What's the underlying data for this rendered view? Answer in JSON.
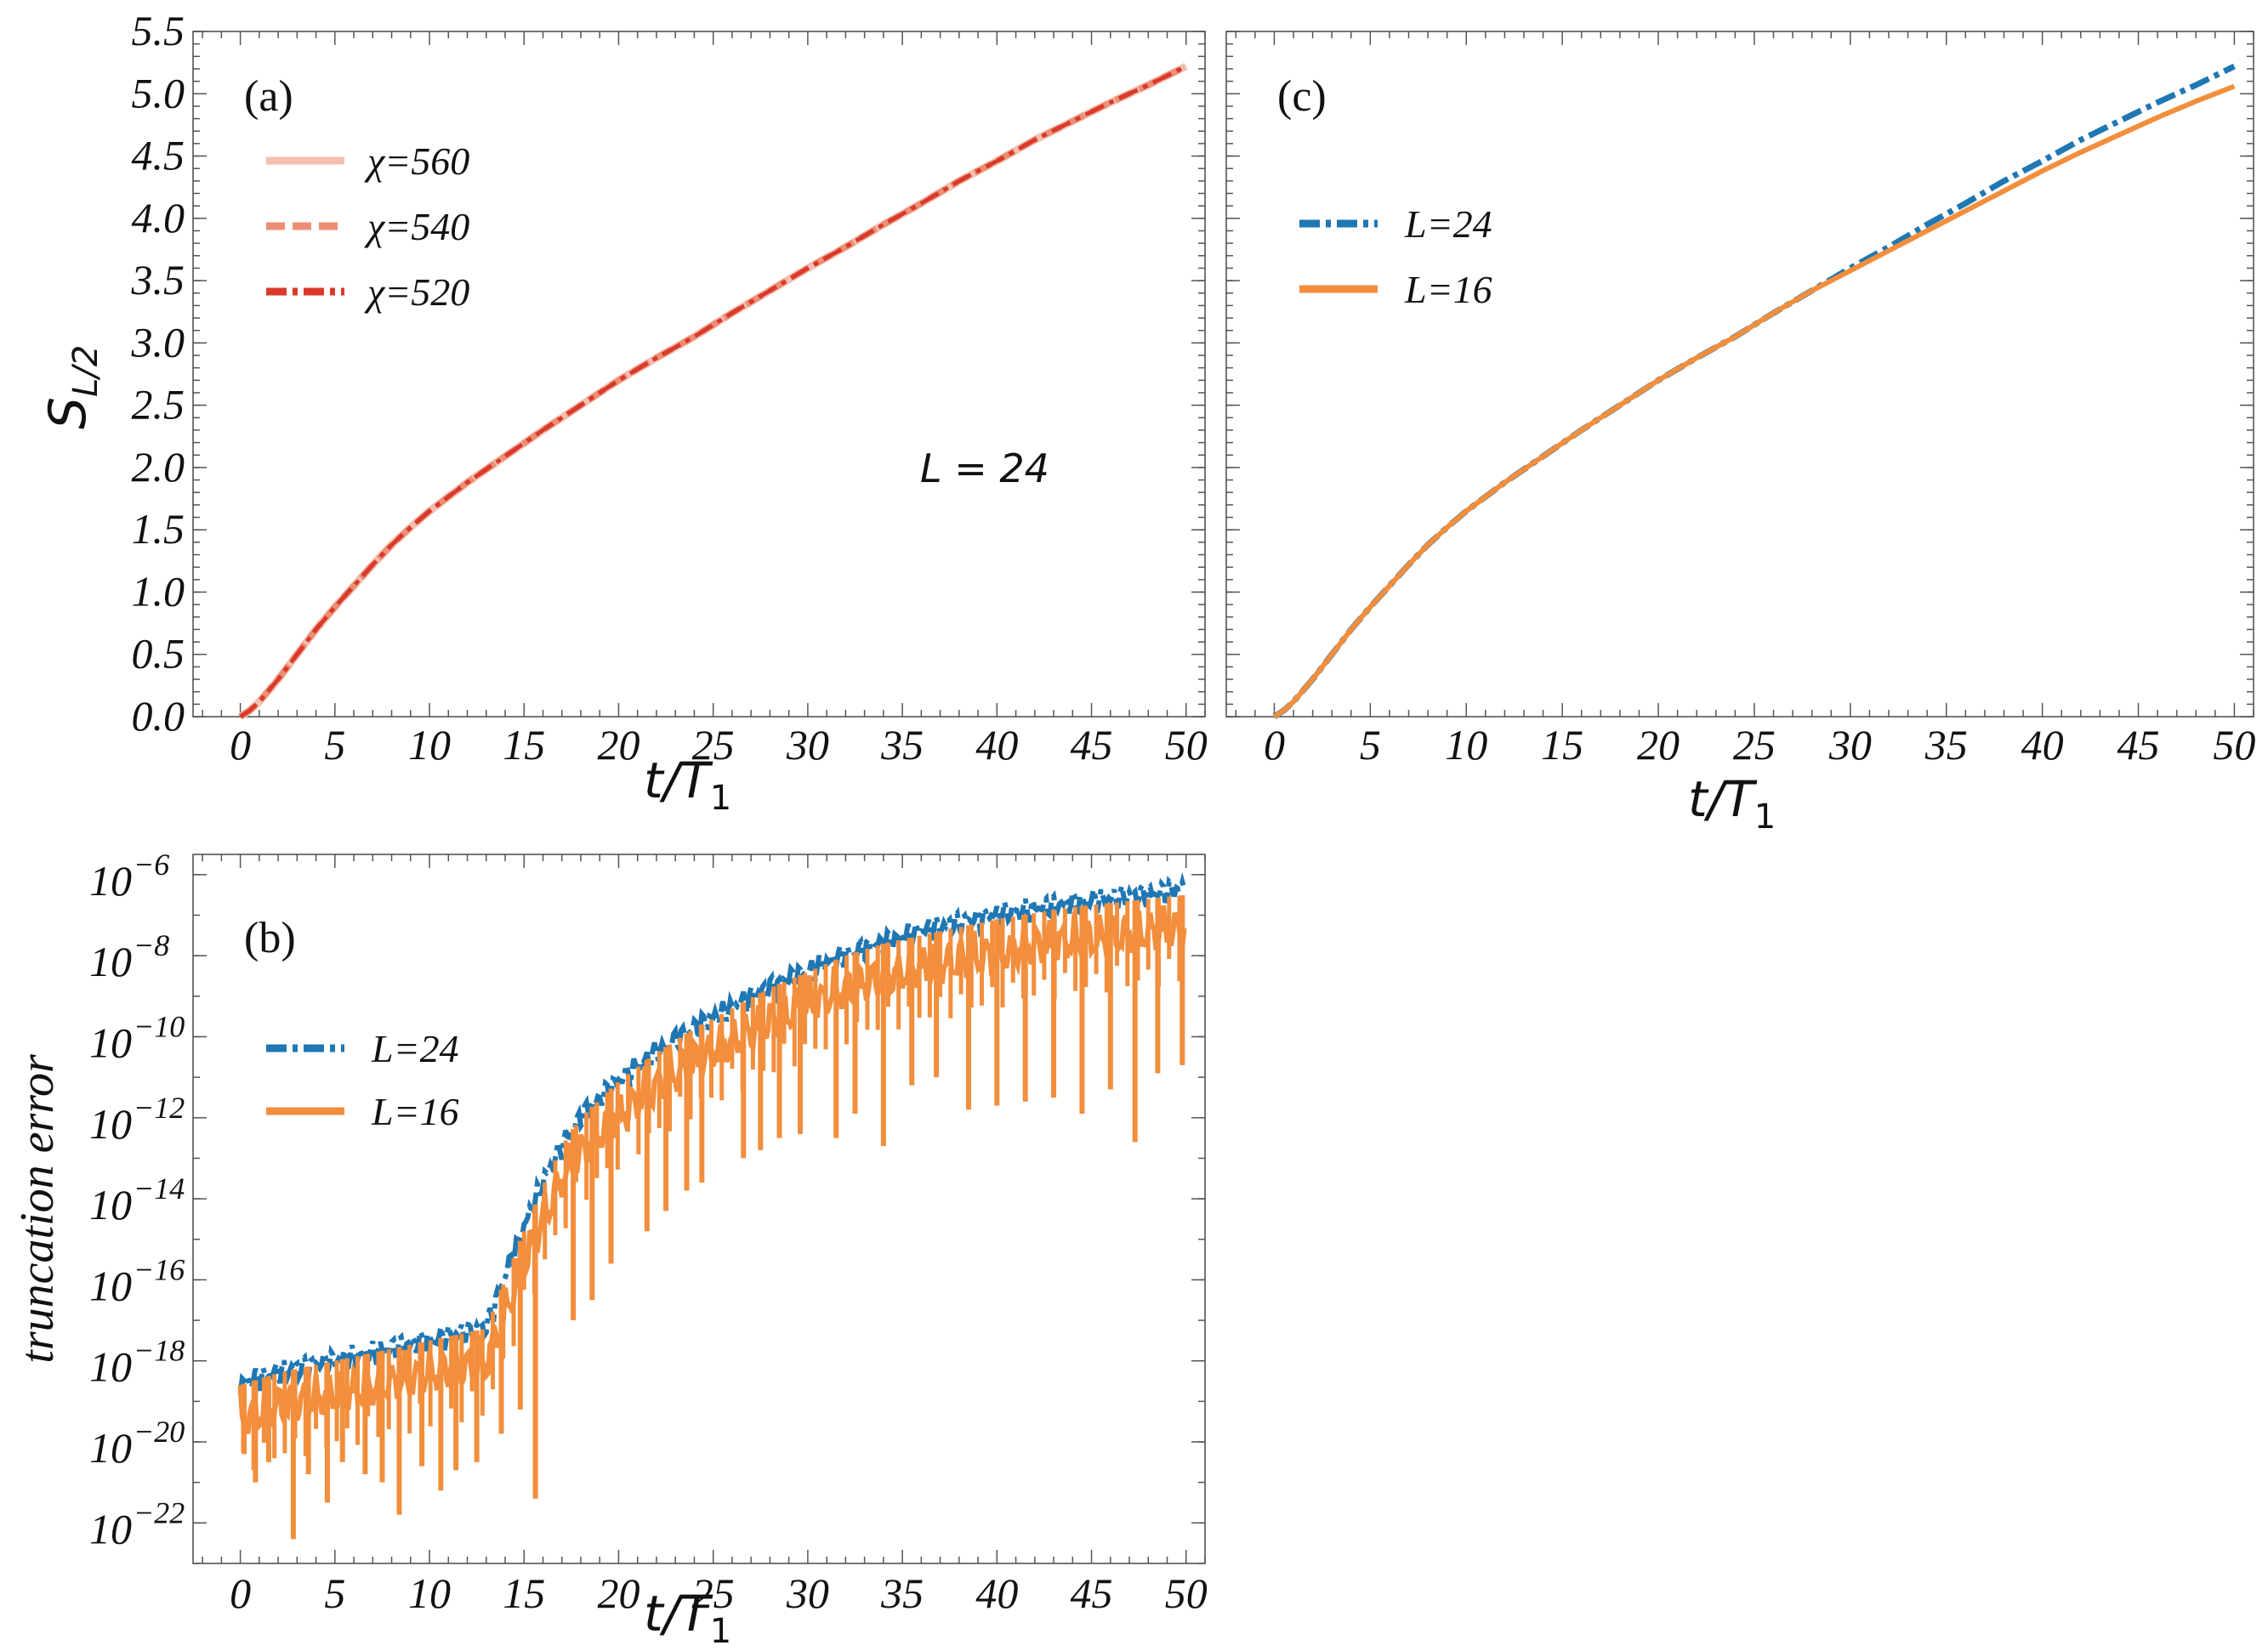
{
  "chart_data": [
    {
      "panel": "(a)",
      "type": "line",
      "xlabel": "t/T",
      "xlabel_sub": "1",
      "ylabel": "S",
      "ylabel_sub": "L/2",
      "xlim": [
        -2.5,
        51
      ],
      "ylim": [
        0,
        5.5
      ],
      "xticks": [
        0,
        5,
        10,
        15,
        20,
        25,
        30,
        35,
        40,
        45,
        50
      ],
      "xtick_labels": [
        "0",
        "5",
        "10",
        "15",
        "20",
        "25",
        "30",
        "35",
        "40",
        "45",
        "50"
      ],
      "yticks": [
        0,
        0.5,
        1,
        1.5,
        2,
        2.5,
        3,
        3.5,
        4,
        4.5,
        5,
        5.5
      ],
      "ytick_labels": [
        "0.0",
        "0.5",
        "1.0",
        "1.5",
        "2.0",
        "2.5",
        "3.0",
        "3.5",
        "4.0",
        "4.5",
        "5.0",
        "5.5"
      ],
      "annotation": "L = 24",
      "x": [
        0,
        0.5,
        1,
        2,
        3,
        4,
        5,
        6,
        7,
        8,
        9,
        10,
        12,
        14,
        16,
        18,
        20,
        22,
        24,
        26,
        28,
        30,
        32,
        34,
        36,
        38,
        40,
        42,
        44,
        46,
        48,
        50
      ],
      "series": [
        {
          "name": "χ=560",
          "color": "#f4bfb1",
          "style": "solid",
          "values": [
            0.0,
            0.05,
            0.12,
            0.3,
            0.5,
            0.7,
            0.88,
            1.05,
            1.22,
            1.38,
            1.52,
            1.65,
            1.88,
            2.09,
            2.3,
            2.5,
            2.7,
            2.88,
            3.05,
            3.24,
            3.42,
            3.6,
            3.77,
            3.95,
            4.12,
            4.3,
            4.46,
            4.63,
            4.78,
            4.93,
            5.07,
            5.22
          ]
        },
        {
          "name": "χ=540",
          "color": "#ec8e74",
          "style": "dashed",
          "values": [
            0.0,
            0.05,
            0.12,
            0.3,
            0.5,
            0.7,
            0.88,
            1.05,
            1.22,
            1.38,
            1.52,
            1.65,
            1.88,
            2.09,
            2.3,
            2.5,
            2.7,
            2.88,
            3.05,
            3.24,
            3.42,
            3.6,
            3.77,
            3.95,
            4.12,
            4.3,
            4.46,
            4.63,
            4.78,
            4.93,
            5.07,
            5.22
          ]
        },
        {
          "name": "χ=520",
          "color": "#d93a2b",
          "style": "dashdot",
          "values": [
            0.0,
            0.05,
            0.12,
            0.3,
            0.5,
            0.7,
            0.88,
            1.05,
            1.22,
            1.38,
            1.52,
            1.65,
            1.88,
            2.09,
            2.3,
            2.5,
            2.7,
            2.88,
            3.05,
            3.24,
            3.42,
            3.6,
            3.77,
            3.95,
            4.12,
            4.3,
            4.46,
            4.63,
            4.78,
            4.93,
            5.07,
            5.22
          ]
        }
      ]
    },
    {
      "panel": "(c)",
      "type": "line",
      "xlabel": "t/T",
      "xlabel_sub": "1",
      "xlim": [
        -2.5,
        51
      ],
      "ylim": [
        0,
        5.5
      ],
      "xticks": [
        0,
        5,
        10,
        15,
        20,
        25,
        30,
        35,
        40,
        45,
        50
      ],
      "xtick_labels": [
        "0",
        "5",
        "10",
        "15",
        "20",
        "25",
        "30",
        "35",
        "40",
        "45",
        "50"
      ],
      "yticks": [
        0,
        0.5,
        1,
        1.5,
        2,
        2.5,
        3,
        3.5,
        4,
        4.5,
        5,
        5.5
      ],
      "x": [
        0,
        0.5,
        1,
        2,
        3,
        4,
        5,
        6,
        7,
        8,
        9,
        10,
        12,
        14,
        16,
        18,
        20,
        22,
        24,
        26,
        28,
        30,
        32,
        34,
        36,
        38,
        40,
        42,
        44,
        46,
        48,
        50
      ],
      "series": [
        {
          "name": "L=24",
          "color": "#1f77b4",
          "style": "dashdot",
          "values": [
            0.0,
            0.05,
            0.12,
            0.3,
            0.5,
            0.7,
            0.88,
            1.05,
            1.22,
            1.38,
            1.52,
            1.65,
            1.88,
            2.09,
            2.3,
            2.5,
            2.7,
            2.88,
            3.05,
            3.24,
            3.42,
            3.6,
            3.77,
            3.95,
            4.12,
            4.3,
            4.46,
            4.63,
            4.78,
            4.93,
            5.07,
            5.22
          ]
        },
        {
          "name": "L=16",
          "color": "#f28e3c",
          "style": "solid",
          "values": [
            0.0,
            0.05,
            0.12,
            0.3,
            0.5,
            0.7,
            0.88,
            1.05,
            1.22,
            1.38,
            1.52,
            1.65,
            1.88,
            2.09,
            2.3,
            2.5,
            2.7,
            2.88,
            3.05,
            3.24,
            3.42,
            3.58,
            3.74,
            3.9,
            4.06,
            4.22,
            4.38,
            4.53,
            4.67,
            4.81,
            4.94,
            5.06
          ]
        }
      ]
    },
    {
      "panel": "(b)",
      "type": "line",
      "xlabel": "t/T",
      "xlabel_sub": "1",
      "ylabel": "truncation error",
      "yscale": "log",
      "xlim": [
        -2.5,
        51
      ],
      "ylim_log10": [
        -23,
        -5.5
      ],
      "xticks": [
        0,
        5,
        10,
        15,
        20,
        25,
        30,
        35,
        40,
        45,
        50
      ],
      "xtick_labels": [
        "0",
        "5",
        "10",
        "15",
        "20",
        "25",
        "30",
        "35",
        "40",
        "45",
        "50"
      ],
      "yticks_log10": [
        -22,
        -20,
        -18,
        -16,
        -14,
        -12,
        -10,
        -8,
        -6
      ],
      "ytick_base": "10",
      "ytick_exponents": [
        "−22",
        "−20",
        "−18",
        "−16",
        "−14",
        "−12",
        "−10",
        "−8",
        "−6"
      ],
      "series": [
        {
          "name": "L=24",
          "color": "#1f77b4",
          "style": "dashdot",
          "envelope_x": [
            0,
            2,
            4,
            6,
            8,
            10,
            12,
            13,
            14,
            15,
            16,
            17,
            18,
            20,
            22,
            24,
            26,
            28,
            30,
            32,
            34,
            36,
            38,
            40,
            42,
            44,
            46,
            48,
            50
          ],
          "envelope_log10": [
            -18.2,
            -17.9,
            -17.7,
            -17.5,
            -17.3,
            -17.1,
            -16.9,
            -16.8,
            -15.5,
            -14.3,
            -13.2,
            -12.3,
            -11.6,
            -10.7,
            -10.0,
            -9.4,
            -8.9,
            -8.4,
            -8.0,
            -7.6,
            -7.3,
            -7.0,
            -6.8,
            -6.6,
            -6.45,
            -6.3,
            -6.2,
            -6.1,
            -5.95
          ]
        },
        {
          "name": "L=16",
          "color": "#f28e3c",
          "style": "solid",
          "envelope_x": [
            0,
            2,
            4,
            6,
            8,
            10,
            12,
            13,
            14,
            15,
            16,
            17,
            18,
            20,
            22,
            24,
            26,
            28,
            30,
            32,
            34,
            36,
            38,
            40,
            42,
            44,
            46,
            48,
            50
          ],
          "envelope_log10": [
            -18.6,
            -18.3,
            -18.1,
            -17.9,
            -17.7,
            -17.5,
            -17.3,
            -17.2,
            -16.0,
            -14.8,
            -13.7,
            -12.7,
            -12.0,
            -11.1,
            -10.4,
            -9.8,
            -9.3,
            -8.8,
            -8.4,
            -8.0,
            -7.7,
            -7.5,
            -7.3,
            -7.1,
            -6.95,
            -6.8,
            -6.7,
            -6.6,
            -6.5
          ],
          "dips_x": [
            0.2,
            0.8,
            1.5,
            2.8,
            3.6,
            4.6,
            5.4,
            6.6,
            7.5,
            8.4,
            9.6,
            10.6,
            11.4,
            12.5,
            13.8,
            14.8,
            15.6,
            17.6,
            18.6,
            19.6,
            21.5,
            22.5,
            23.6,
            24.4,
            26.6,
            27.5,
            28.5,
            29.6,
            31.5,
            32.5,
            34.0,
            35.5,
            36.8,
            38.5,
            40.0,
            41.5,
            43.0,
            44.5,
            46.0,
            47.3,
            48.5,
            49.8
          ],
          "dips_log10": [
            -20.3,
            -21.0,
            -20.5,
            -22.4,
            -20.8,
            -21.5,
            -20.5,
            -20.8,
            -21.0,
            -21.8,
            -20.6,
            -21.2,
            -20.7,
            -20.5,
            -19.8,
            -19.2,
            -21.4,
            -17.0,
            -16.5,
            -15.6,
            -14.8,
            -14.3,
            -13.8,
            -13.6,
            -13.0,
            -12.8,
            -12.5,
            -12.4,
            -12.5,
            -11.9,
            -12.7,
            -11.2,
            -11.0,
            -11.8,
            -11.7,
            -11.6,
            -11.5,
            -11.9,
            -11.3,
            -12.6,
            -10.9,
            -10.7
          ]
        }
      ]
    }
  ]
}
